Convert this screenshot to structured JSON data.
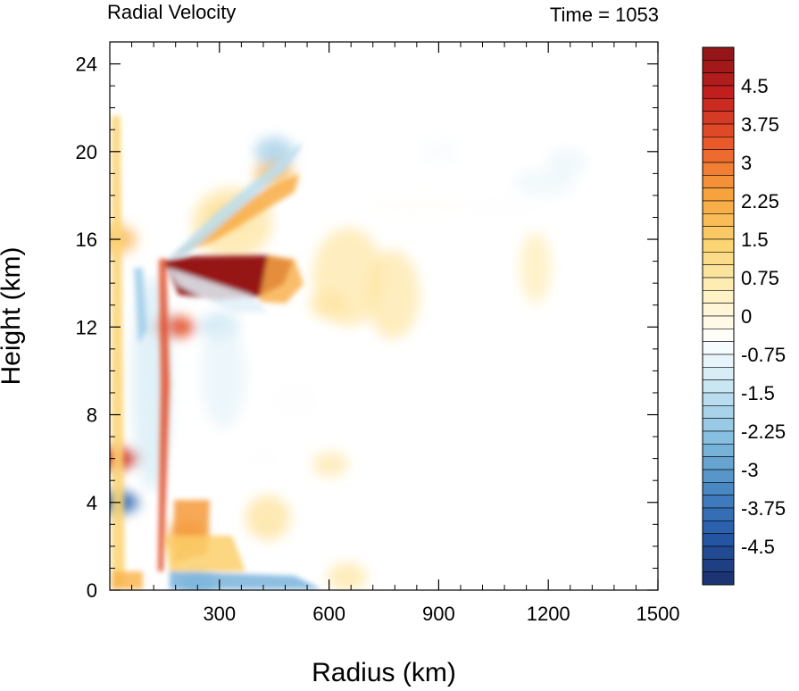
{
  "chart_data": {
    "type": "heatmap",
    "title": "Radial Velocity",
    "subtitle": "Time = 1053",
    "xlabel": "Radius (km)",
    "ylabel": "Height (km)",
    "xlim": [
      0,
      1500
    ],
    "ylim": [
      0,
      25
    ],
    "x_ticks": [
      "300",
      "600",
      "900",
      "1200",
      "1500"
    ],
    "x_tick_values": [
      300,
      600,
      900,
      1200,
      1500
    ],
    "y_ticks": [
      "0",
      "4",
      "8",
      "12",
      "16",
      "20",
      "24"
    ],
    "y_tick_values": [
      0,
      4,
      8,
      12,
      16,
      20,
      24
    ],
    "colorbar": {
      "min": -5.25,
      "max": 5.25,
      "step": 0.25,
      "labels": [
        "4.5",
        "3.75",
        "3",
        "2.25",
        "1.5",
        "0.75",
        "0",
        "-0.75",
        "-1.5",
        "-2.25",
        "-3",
        "-3.75",
        "-4.5"
      ],
      "label_values": [
        4.5,
        3.75,
        3,
        2.25,
        1.5,
        0.75,
        0,
        -0.75,
        -1.5,
        -2.25,
        -3,
        -3.75,
        -4.5
      ],
      "stops": [
        "#1a2f6b",
        "#2458a8",
        "#4a8ac4",
        "#86bfe0",
        "#c6e4f2",
        "#ffffff",
        "#fff0bf",
        "#fbd36e",
        "#f7a23c",
        "#ea5b2a",
        "#c4201f",
        "#8e1416"
      ]
    },
    "features": [
      {
        "x": 340,
        "y": 14.3,
        "value": 5.0
      },
      {
        "x": 20,
        "y": 6.0,
        "value": 4.0
      },
      {
        "x": 20,
        "y": 4.0,
        "value": -4.0
      },
      {
        "x": 175,
        "y": 12.0,
        "value": 3.5
      },
      {
        "x": 210,
        "y": 2.5,
        "value": 2.5
      },
      {
        "x": 450,
        "y": 19.0,
        "value": 2.0
      },
      {
        "x": 320,
        "y": 17.0,
        "value": 1.5
      },
      {
        "x": 300,
        "y": 12.0,
        "value": -1.5
      },
      {
        "x": 450,
        "y": 20.0,
        "value": -2.0
      },
      {
        "x": 900,
        "y": 20.0,
        "value": -0.6
      },
      {
        "x": 1250,
        "y": 19.5,
        "value": -0.8
      },
      {
        "x": 600,
        "y": 13.0,
        "value": 0.8
      },
      {
        "x": 420,
        "y": 6.0,
        "value": -0.5
      },
      {
        "x": 240,
        "y": 0.2,
        "value": -2.5
      },
      {
        "x": 650,
        "y": 0.6,
        "value": 0.8
      },
      {
        "x": 20,
        "y": 16.0,
        "value": 2.0
      }
    ]
  }
}
